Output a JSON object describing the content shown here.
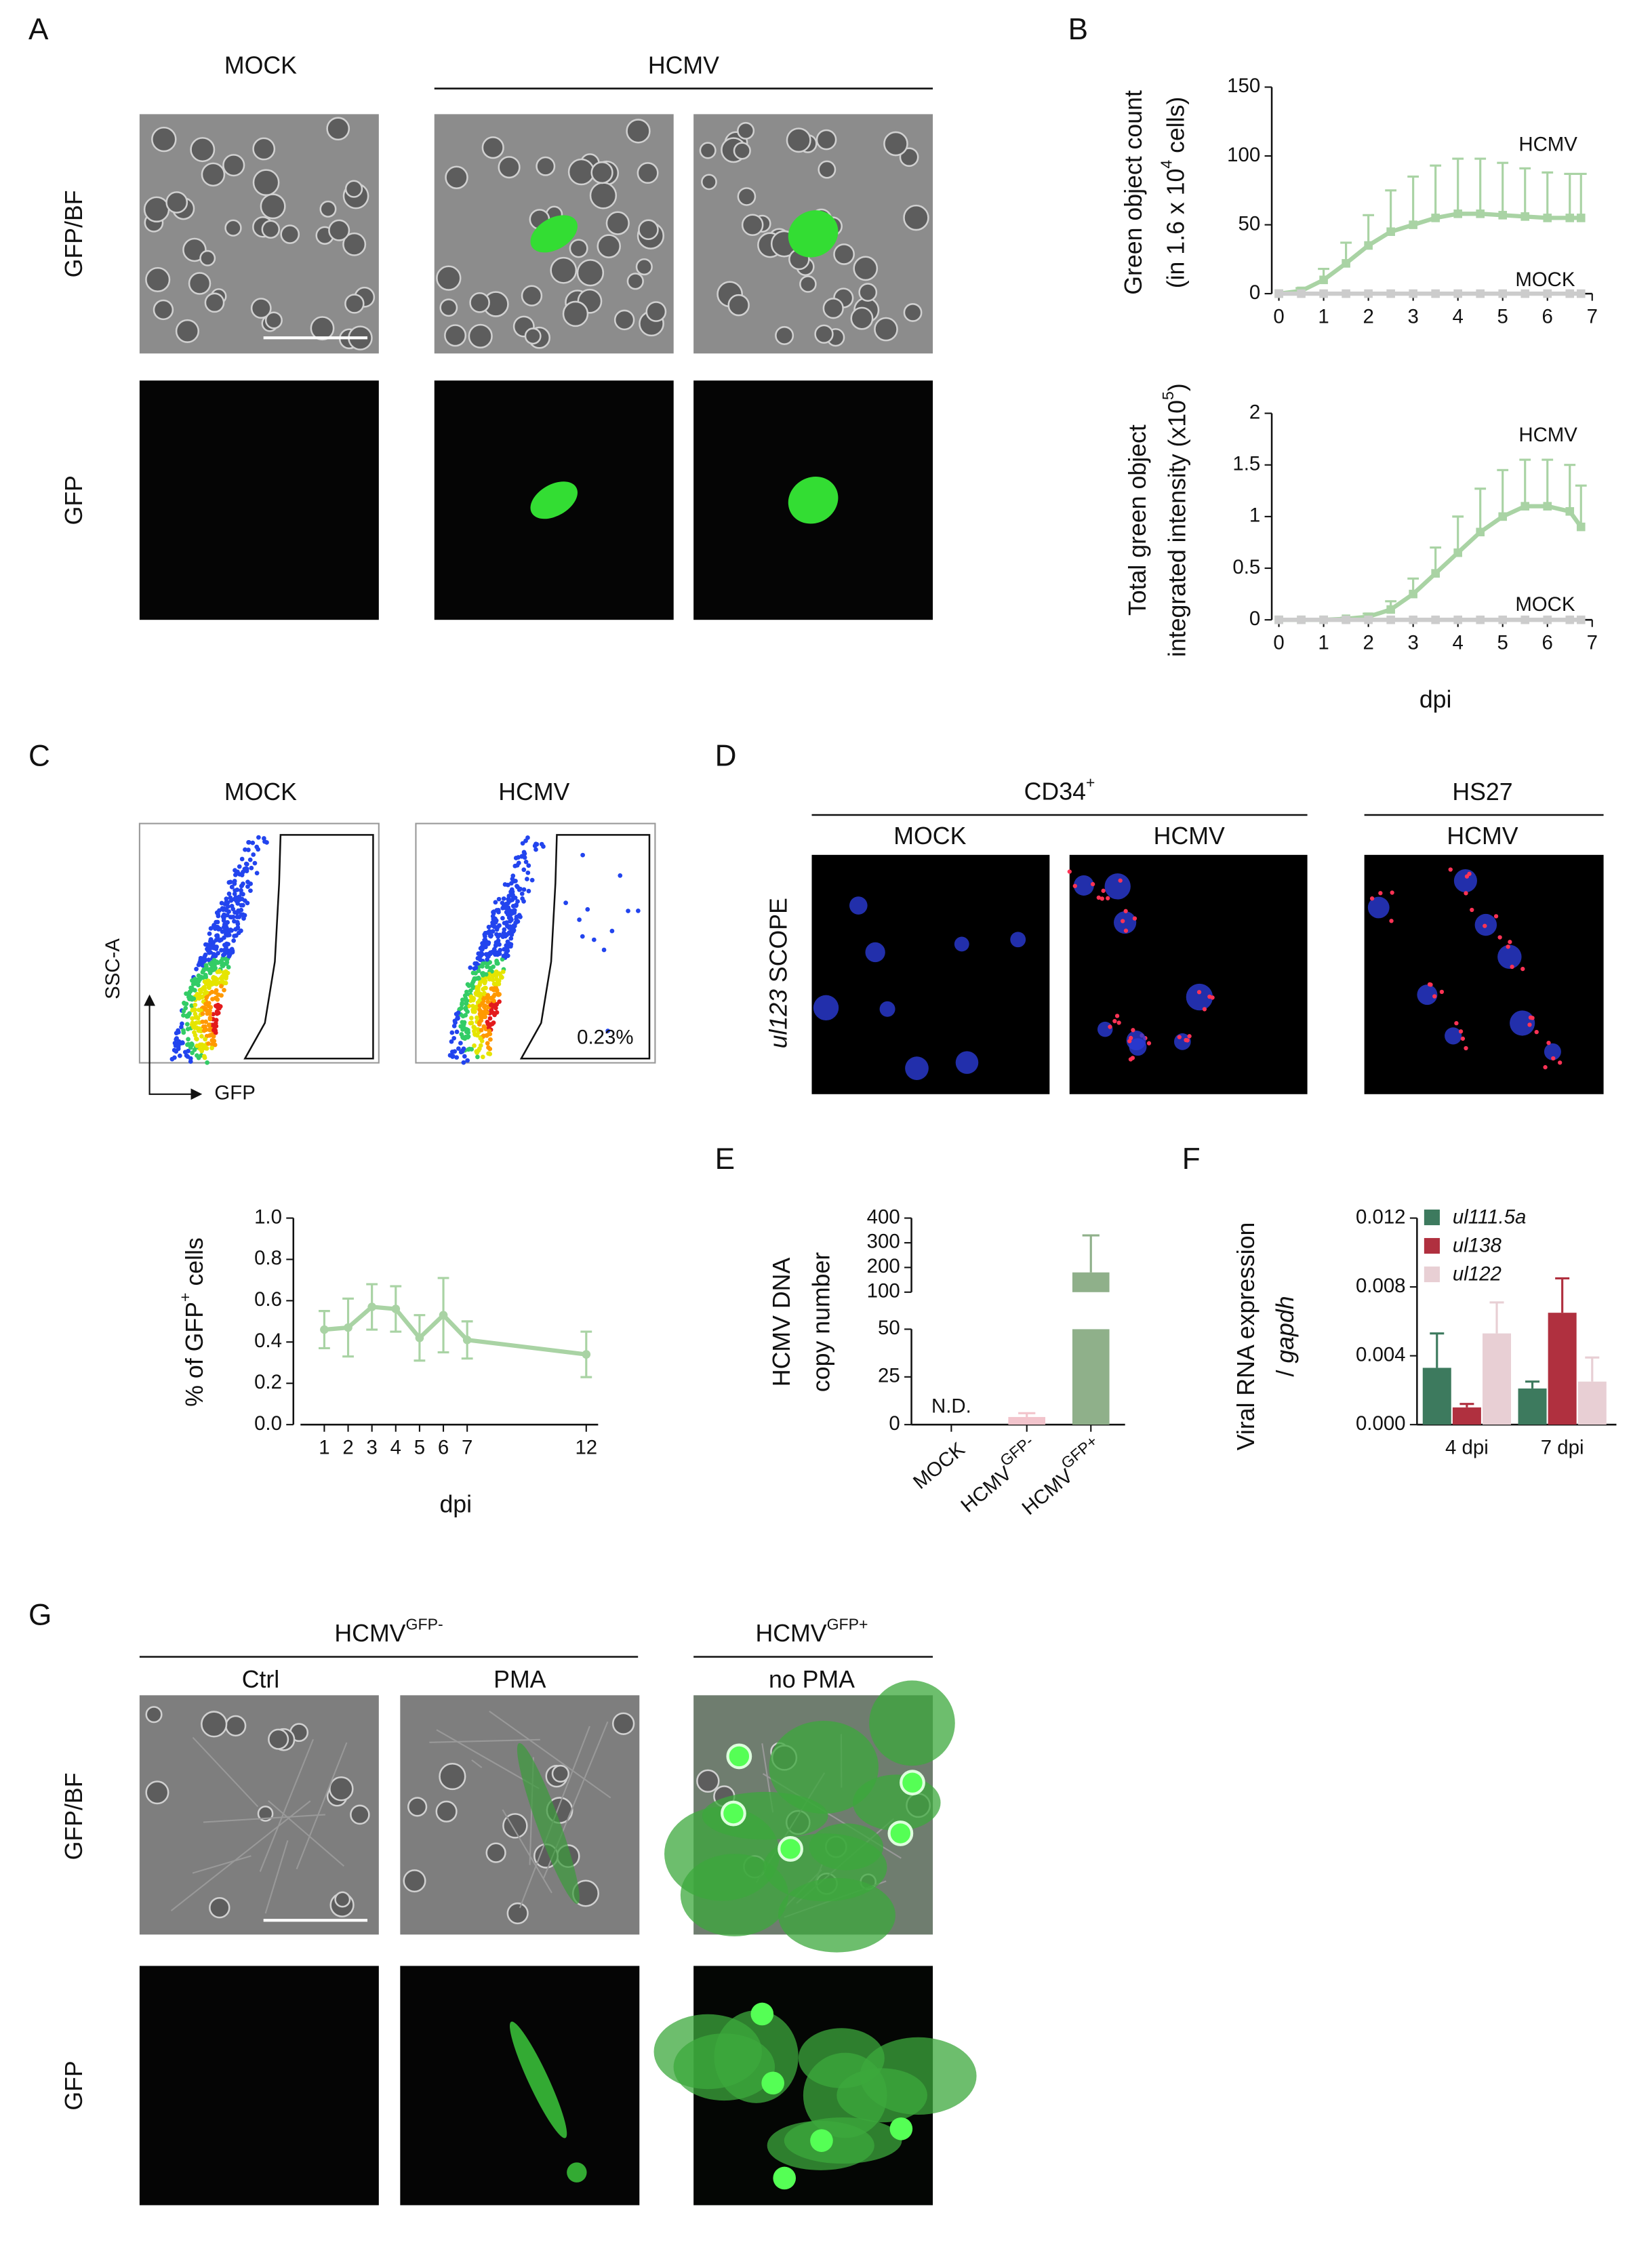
{
  "panels": {
    "A": {
      "letter": "A",
      "mock": "MOCK",
      "hcmv": "HCMV",
      "row_labels": [
        "GFP/BF",
        "GFP"
      ]
    },
    "B": {
      "letter": "B"
    },
    "C": {
      "letter": "C",
      "mock": "MOCK",
      "hcmv": "HCMV",
      "y_axis": "SSC-A",
      "x_axis": "GFP",
      "gate_percent": "0.23%"
    },
    "D": {
      "letter": "D",
      "group1": {
        "text": "CD34",
        "sup": "+"
      },
      "mock": "MOCK",
      "hcmv": "HCMV",
      "group2": "HS27",
      "hcmv2": "HCMV",
      "row_label": {
        "italic": "ul123",
        "after": " SCOPE"
      }
    },
    "E": {
      "letter": "E"
    },
    "F": {
      "letter": "F"
    },
    "G": {
      "letter": "G",
      "group1": {
        "text": "HCMV",
        "sup": "GFP-"
      },
      "ctrl": "Ctrl",
      "pma": "PMA",
      "group2": {
        "text": "HCMV",
        "sup": "GFP+"
      },
      "no_pma": "no PMA",
      "row_labels": [
        "GFP/BF",
        "GFP"
      ]
    }
  },
  "chart_data": [
    {
      "type": "line",
      "ylabel": [
        "Green object count",
        {
          "text": "(in 1.6 x 10",
          "sup": "4",
          "after": " cells)"
        }
      ],
      "x": [
        0,
        0.5,
        1,
        1.5,
        2,
        2.5,
        3,
        3.5,
        4,
        4.5,
        5,
        5.5,
        6,
        6.5,
        6.75
      ],
      "xlim": [
        0,
        7
      ],
      "xticks": [
        0,
        1,
        2,
        3,
        4,
        5,
        6,
        7
      ],
      "ylim": [
        0,
        150
      ],
      "yticks": [
        0,
        50,
        100,
        150
      ],
      "marker": "square",
      "error_direction": "up",
      "series": [
        {
          "name": "HCMV",
          "color": "#a9d3a4",
          "values": [
            0,
            2,
            10,
            22,
            35,
            45,
            50,
            55,
            58,
            58,
            57,
            56,
            55,
            55,
            55
          ],
          "errors": [
            0,
            2,
            8,
            15,
            22,
            30,
            35,
            38,
            40,
            40,
            38,
            35,
            33,
            32,
            32
          ]
        },
        {
          "name": "MOCK",
          "color": "#cccccc",
          "values": [
            0,
            0,
            0,
            0,
            0,
            0,
            0,
            0,
            0,
            0,
            0,
            0,
            0,
            0,
            0
          ]
        }
      ]
    },
    {
      "type": "line",
      "ylabel": [
        "Total green object",
        {
          "text": "integrated intensity (x10",
          "sup": "5",
          "after": ")"
        }
      ],
      "xlabel": "dpi",
      "x": [
        0,
        0.5,
        1,
        1.5,
        2,
        2.5,
        3,
        3.5,
        4,
        4.5,
        5,
        5.5,
        6,
        6.5,
        6.75
      ],
      "xlim": [
        0,
        7
      ],
      "xticks": [
        0,
        1,
        2,
        3,
        4,
        5,
        6,
        7
      ],
      "ylim": [
        0,
        2
      ],
      "yticks": [
        0,
        0.5,
        1,
        1.5,
        2
      ],
      "marker": "square",
      "error_direction": "up",
      "series": [
        {
          "name": "HCMV",
          "color": "#a9d3a4",
          "values": [
            0,
            0,
            0,
            0.01,
            0.03,
            0.1,
            0.25,
            0.45,
            0.65,
            0.85,
            1.0,
            1.1,
            1.1,
            1.05,
            0.9
          ],
          "errors": [
            0,
            0,
            0,
            0.01,
            0.03,
            0.08,
            0.15,
            0.25,
            0.35,
            0.42,
            0.45,
            0.45,
            0.45,
            0.45,
            0.4
          ]
        },
        {
          "name": "MOCK",
          "color": "#cccccc",
          "values": [
            0,
            0,
            0,
            0,
            0,
            0,
            0,
            0,
            0,
            0,
            0,
            0,
            0,
            0,
            0
          ]
        }
      ]
    },
    {
      "type": "line",
      "ylabel": {
        "text": "% of GFP",
        "sup": "+",
        "after": " cells"
      },
      "xlabel": "dpi",
      "x": [
        1,
        2,
        3,
        4,
        5,
        6,
        7,
        12
      ],
      "xlim": [
        0,
        12.5
      ],
      "xticks": [
        1,
        2,
        3,
        4,
        5,
        6,
        7,
        12
      ],
      "ylim": [
        0,
        1
      ],
      "yticks": [
        {
          "value": 0,
          "label": "0.0"
        },
        0.2,
        0.4,
        0.6,
        0.8,
        {
          "value": 1,
          "label": "1.0"
        }
      ],
      "marker": "circle",
      "error_direction": "both",
      "series": [
        {
          "color": "#a9d3a4",
          "values": [
            0.46,
            0.47,
            0.57,
            0.56,
            0.42,
            0.53,
            0.41,
            0.34
          ],
          "errors": [
            0.09,
            0.14,
            0.11,
            0.11,
            0.11,
            0.18,
            0.09,
            0.11
          ]
        }
      ]
    },
    {
      "type": "broken_bar",
      "ylabel": [
        "HCMV DNA",
        "copy number"
      ],
      "categories": [
        "MOCK",
        {
          "text": "HCMV",
          "sup": "GFP-"
        },
        {
          "text": "HCMV",
          "sup": "GFP+"
        }
      ],
      "values": [
        null,
        4,
        180
      ],
      "errors": [
        null,
        2,
        150
      ],
      "value_labels": [
        "N.D.",
        null,
        null
      ],
      "colors": [
        "#cccccc",
        "#f2c4cc",
        "#8fb08a"
      ],
      "ylim": [
        0,
        400
      ],
      "ybreak": [
        50,
        100
      ],
      "yticks": [
        0,
        25,
        50,
        100,
        200,
        300,
        400
      ]
    },
    {
      "type": "grouped_bar",
      "ylabel": [
        "Viral RNA expression",
        {
          "text": "/ ",
          "italic": "gapdh"
        }
      ],
      "categories": [
        "4 dpi",
        "7 dpi"
      ],
      "ylim": [
        0,
        0.012
      ],
      "yticks": [
        {
          "value": 0,
          "label": "0.000"
        },
        {
          "value": 0.004,
          "label": "0.004"
        },
        {
          "value": 0.008,
          "label": "0.008"
        },
        {
          "value": 0.012,
          "label": "0.012"
        }
      ],
      "series": [
        {
          "name": "ul111.5a",
          "color": "#3d7a5e",
          "values": [
            0.0033,
            0.0021
          ],
          "errors": [
            0.002,
            0.0004
          ]
        },
        {
          "name": "ul138",
          "color": "#b0303f",
          "values": [
            0.001,
            0.0065
          ],
          "errors": [
            0.0002,
            0.002
          ]
        },
        {
          "name": "ul122",
          "color": "#e8cfd4",
          "values": [
            0.0053,
            0.0025
          ],
          "errors": [
            0.0018,
            0.0014
          ]
        }
      ]
    }
  ]
}
